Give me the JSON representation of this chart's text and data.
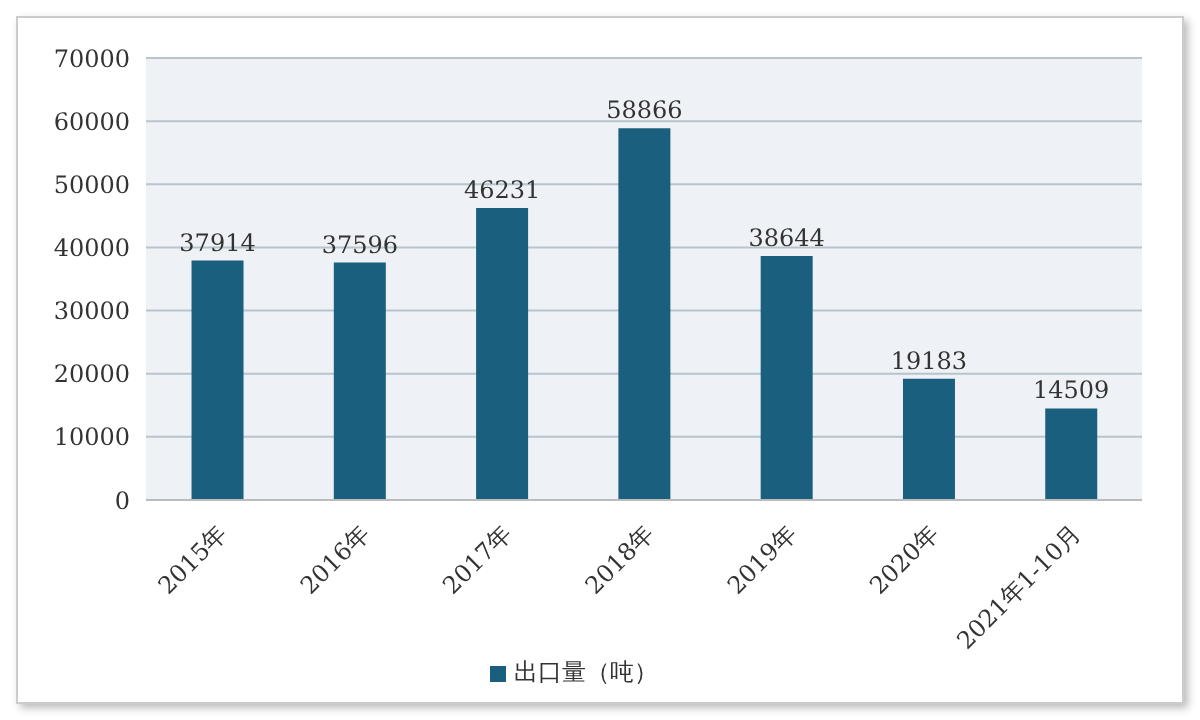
{
  "chart_data": {
    "type": "bar",
    "categories": [
      "2015年",
      "2016年",
      "2017年",
      "2018年",
      "2019年",
      "2020年",
      "2021年1-10月"
    ],
    "series": [
      {
        "name": "出口量（吨）",
        "color": "#1b5f7e",
        "values": [
          37914,
          37596,
          46231,
          58866,
          38644,
          19183,
          14509
        ]
      }
    ],
    "ylim": [
      0,
      70000
    ],
    "yticks": [
      0,
      10000,
      20000,
      30000,
      40000,
      50000,
      60000,
      70000
    ],
    "grid": "y",
    "legend": "bottom",
    "data_labels": true
  }
}
